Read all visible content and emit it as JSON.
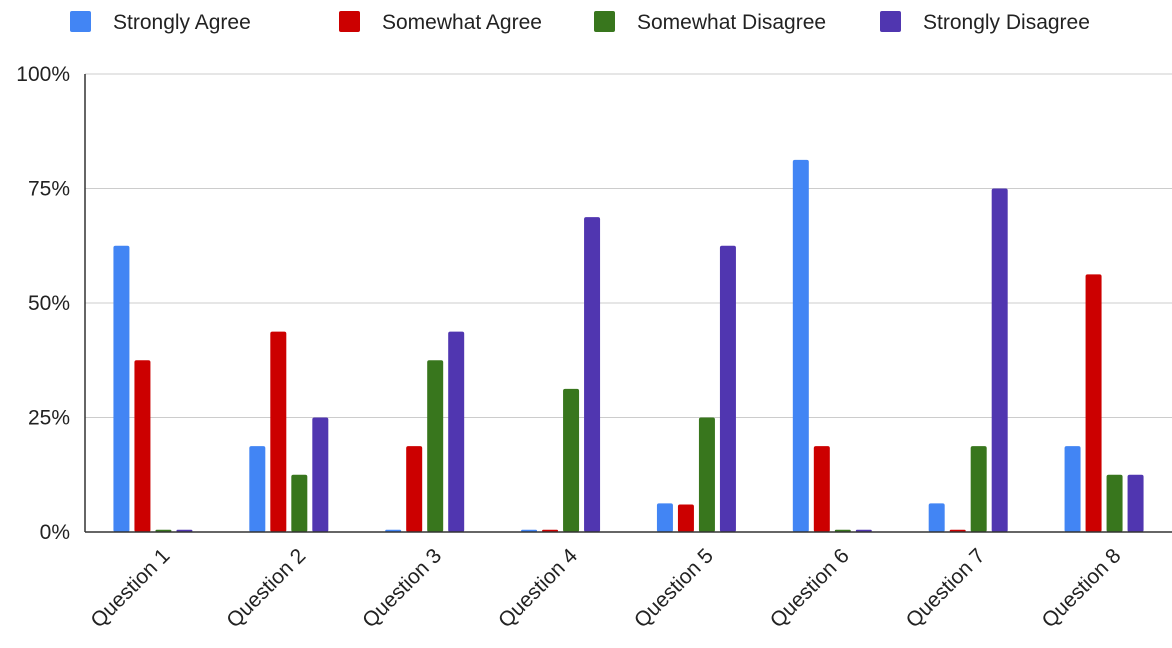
{
  "chart_data": {
    "type": "bar",
    "title": "",
    "xlabel": "",
    "ylabel": "",
    "categories": [
      "Question 1",
      "Question 2",
      "Question 3",
      "Question 4",
      "Question 5",
      "Question 6",
      "Question 7",
      "Question 8"
    ],
    "series": [
      {
        "name": "Strongly Agree",
        "color": "#4285F4",
        "values": [
          62.5,
          18.75,
          0.5,
          0.5,
          6.25,
          81.25,
          6.25,
          18.75
        ]
      },
      {
        "name": "Somewhat Agree",
        "color": "#CC0000",
        "values": [
          37.5,
          43.75,
          18.75,
          0.5,
          6.0,
          18.75,
          0.5,
          56.25
        ]
      },
      {
        "name": "Somewhat Disagree",
        "color": "#38761D",
        "values": [
          0.5,
          12.5,
          37.5,
          31.25,
          25.0,
          0.5,
          18.75,
          12.5
        ]
      },
      {
        "name": "Strongly Disagree",
        "color": "#5036B0",
        "values": [
          0.5,
          25.0,
          43.75,
          68.75,
          62.5,
          0.5,
          75.0,
          12.5
        ]
      }
    ],
    "ylim": [
      0,
      100
    ],
    "yticks": [
      0,
      25,
      50,
      75,
      100
    ],
    "ytick_labels": [
      "0%",
      "25%",
      "50%",
      "75%",
      "100%"
    ],
    "grid": true,
    "legend_position": "top"
  }
}
